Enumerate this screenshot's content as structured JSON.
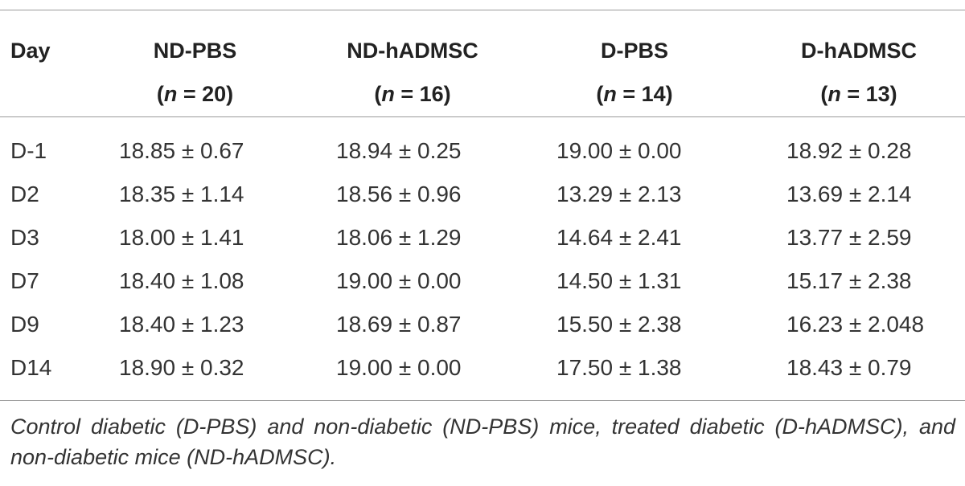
{
  "header": {
    "day": "Day",
    "groups": [
      {
        "name": "ND-PBS",
        "n_label": "n",
        "n_value": " = 20"
      },
      {
        "name": "ND-hADMSC",
        "n_label": "n",
        "n_value": " = 16"
      },
      {
        "name": "D-PBS",
        "n_label": "n",
        "n_value": " = 14"
      },
      {
        "name": "D-hADMSC",
        "n_label": "n",
        "n_value": " = 13"
      }
    ]
  },
  "rows": [
    {
      "day": "D-1",
      "values": [
        "18.85 ± 0.67",
        "18.94 ± 0.25",
        "19.00 ± 0.00",
        "18.92 ± 0.28"
      ]
    },
    {
      "day": "D2",
      "values": [
        "18.35 ± 1.14",
        "18.56 ± 0.96",
        "13.29 ± 2.13",
        "13.69 ± 2.14"
      ]
    },
    {
      "day": "D3",
      "values": [
        "18.00 ± 1.41",
        "18.06 ± 1.29",
        "14.64 ± 2.41",
        "13.77 ± 2.59"
      ]
    },
    {
      "day": "D7",
      "values": [
        "18.40 ± 1.08",
        "19.00 ± 0.00",
        "14.50 ± 1.31",
        "15.17 ± 2.38"
      ]
    },
    {
      "day": "D9",
      "values": [
        "18.40 ± 1.23",
        "18.69 ± 0.87",
        "15.50 ± 2.38",
        "16.23 ± 2.048"
      ]
    },
    {
      "day": "D14",
      "values": [
        "18.90 ± 0.32",
        "19.00 ± 0.00",
        "17.50 ± 1.38",
        "18.43 ± 0.79"
      ]
    }
  ],
  "footnote": "Control diabetic (D-PBS) and non-diabetic (ND-PBS) mice, treated diabetic (D-hADMSC), and non-diabetic mice (ND-hADMSC)."
}
